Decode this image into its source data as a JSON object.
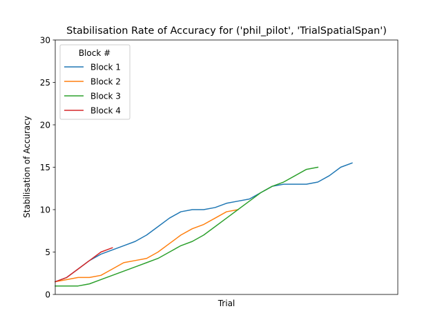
{
  "chart_data": {
    "type": "line",
    "title": "Stabilisation Rate of Accuracy for ('phil_pilot', 'TrialSpatialSpan')",
    "xlabel": "Trial",
    "ylabel": "Stabilisation of Accuracy",
    "xlim": [
      0,
      30
    ],
    "ylim": [
      0,
      30
    ],
    "yticks": [
      "0",
      "5",
      "10",
      "15",
      "20",
      "25",
      "30"
    ],
    "show_xticks": false,
    "grid": false,
    "legend": {
      "title": "Block #",
      "location": "top-left"
    },
    "series": [
      {
        "name": "Block 1",
        "color": "#1f77b4",
        "x": [
          0,
          1,
          2,
          3,
          4,
          5,
          6,
          7,
          8,
          9,
          10,
          11,
          12,
          13,
          14,
          15,
          16,
          17,
          18,
          19,
          20,
          21,
          22,
          23,
          24,
          25,
          26
        ],
        "y": [
          1.5,
          2,
          3,
          4,
          4.75,
          5.25,
          5.75,
          6.25,
          7,
          8,
          9,
          9.75,
          10,
          10,
          10.25,
          10.75,
          11,
          11.25,
          12,
          12.75,
          13,
          13,
          13,
          13.25,
          14,
          15,
          15.5
        ]
      },
      {
        "name": "Block 2",
        "color": "#ff7f0e",
        "x": [
          0,
          1,
          2,
          3,
          4,
          5,
          6,
          7,
          8,
          9,
          10,
          11,
          12,
          13,
          14,
          15,
          16
        ],
        "y": [
          1.5,
          1.75,
          2,
          2,
          2.25,
          3,
          3.75,
          4,
          4.25,
          5,
          6,
          7,
          7.75,
          8.25,
          9,
          9.75,
          10
        ]
      },
      {
        "name": "Block 3",
        "color": "#2ca02c",
        "x": [
          0,
          1,
          2,
          3,
          4,
          5,
          6,
          7,
          8,
          9,
          10,
          11,
          12,
          13,
          14,
          15,
          16,
          17,
          18,
          19,
          20,
          21,
          22,
          23
        ],
        "y": [
          1,
          1,
          1,
          1.25,
          1.75,
          2.25,
          2.75,
          3.25,
          3.75,
          4.25,
          5,
          5.75,
          6.25,
          7,
          8,
          9,
          10,
          11,
          12,
          12.75,
          13.25,
          14,
          14.75,
          15
        ]
      },
      {
        "name": "Block 4",
        "color": "#d62728",
        "x": [
          0,
          1,
          2,
          3,
          4,
          5
        ],
        "y": [
          1.5,
          2,
          3,
          4,
          5,
          5.5
        ]
      }
    ]
  }
}
